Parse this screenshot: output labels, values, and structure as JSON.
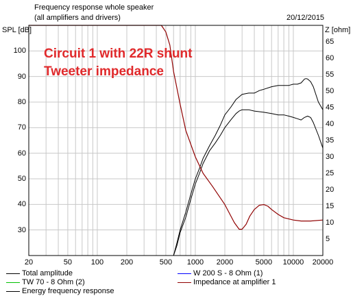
{
  "header": {
    "title": "Frequency response whole speaker",
    "subtitle": "(all amplifiers and drivers)",
    "date": "20/12/2015"
  },
  "overlay": {
    "line1": "Circuit 1 with 22R shunt",
    "line2": "Tweeter impedance"
  },
  "chart_data": {
    "type": "line",
    "xscale": "log",
    "xlim": [
      20,
      20000
    ],
    "x_tick_labels": [
      "20",
      "50",
      "100",
      "200",
      "500",
      "1000",
      "2000",
      "5000",
      "10000",
      "20000"
    ],
    "ylabel_left": "SPL [dB]",
    "ylim_left": [
      20,
      110
    ],
    "y_left_ticks": [
      30,
      40,
      50,
      60,
      70,
      80,
      90,
      100
    ],
    "ylabel_right": "Z [ohm]",
    "ylim_right": [
      0,
      70
    ],
    "y_right_ticks": [
      5,
      10,
      15,
      20,
      25,
      30,
      35,
      40,
      45,
      50,
      55,
      60,
      65
    ],
    "grid": true,
    "legend_placement": "bottom",
    "series": [
      {
        "name": "Total amplitude",
        "axis": "left",
        "color": "#000000",
        "x": [
          600,
          650,
          700,
          800,
          900,
          1000,
          1100,
          1200,
          1400,
          1600,
          1800,
          2000,
          2300,
          2600,
          3000,
          3500,
          4000,
          4500,
          5000,
          6000,
          7000,
          8000,
          9000,
          10000,
          11000,
          12000,
          13000,
          13500,
          14000,
          15000,
          16000,
          18000,
          20000
        ],
        "values": [
          20,
          25,
          30,
          37,
          44,
          50,
          54,
          58,
          63,
          67,
          71,
          75,
          78,
          81,
          83,
          83.5,
          83.5,
          84.5,
          85,
          86,
          86.5,
          86.5,
          86.5,
          87,
          87,
          87.5,
          89,
          89.2,
          89,
          88,
          86,
          80,
          77
        ]
      },
      {
        "name": "TW 70 - 8 Ohm (2)",
        "axis": "left",
        "color": "#00c000",
        "x": [],
        "values": []
      },
      {
        "name": "Energy frequency response",
        "axis": "left",
        "color": "#000000",
        "x": [
          600,
          650,
          700,
          800,
          900,
          1000,
          1100,
          1200,
          1400,
          1600,
          1800,
          2000,
          2300,
          2600,
          2800,
          3000,
          3500,
          4000,
          5000,
          6000,
          7000,
          8000,
          9000,
          10000,
          11000,
          12000,
          13000,
          14000,
          15000,
          16000,
          18000,
          20000
        ],
        "values": [
          20,
          24,
          29,
          35,
          42,
          48,
          52,
          56,
          61,
          64,
          67,
          70,
          73,
          75.5,
          76.5,
          77,
          77,
          76.5,
          76,
          75.5,
          75,
          75,
          74.5,
          74,
          73.5,
          73,
          74,
          74.5,
          74,
          72,
          67,
          62
        ]
      },
      {
        "name": "W 200 S - 8 Ohm (1)",
        "axis": "left",
        "color": "#0000ff",
        "x": [
          20,
          20000
        ],
        "values": [
          20,
          20
        ]
      },
      {
        "name": "Impedance at amplifier 1",
        "axis": "right",
        "color": "#900000",
        "x": [
          20,
          100,
          300,
          400,
          450,
          500,
          550,
          600,
          700,
          800,
          1000,
          1200,
          1500,
          2000,
          2500,
          2800,
          3000,
          3300,
          3600,
          4000,
          4500,
          5000,
          5500,
          6000,
          7000,
          8000,
          10000,
          12000,
          15000,
          20000
        ],
        "values": [
          70,
          70,
          70,
          70,
          70,
          68,
          64,
          56,
          46,
          38,
          30,
          25,
          21,
          15.5,
          10,
          8,
          8,
          9.5,
          12,
          14,
          15.3,
          15.5,
          15,
          14,
          12.5,
          11.5,
          10.8,
          10.5,
          10.5,
          10.8
        ]
      }
    ]
  }
}
